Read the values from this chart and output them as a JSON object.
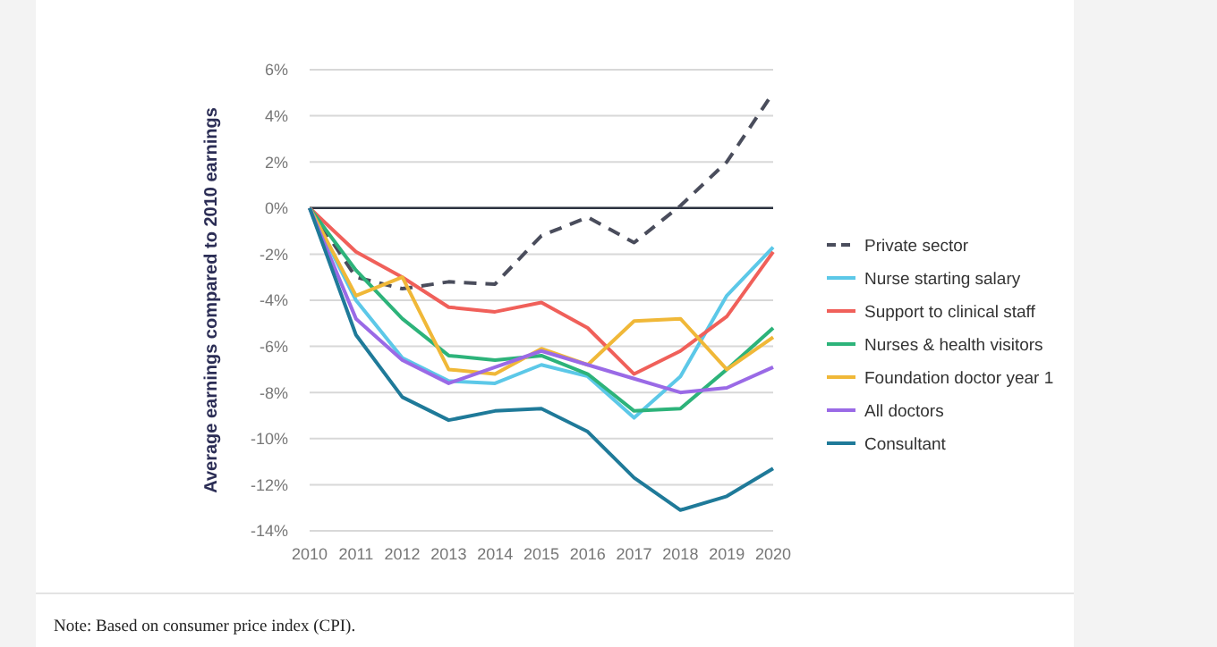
{
  "chart_data": {
    "type": "line",
    "ylabel": "Average earnings compared to 2010 earnings",
    "x": [
      2010,
      2011,
      2012,
      2013,
      2014,
      2015,
      2016,
      2017,
      2018,
      2019,
      2020
    ],
    "xlim": [
      2010,
      2020
    ],
    "xticks": [
      2010,
      2011,
      2012,
      2013,
      2014,
      2015,
      2016,
      2017,
      2018,
      2019,
      2020
    ],
    "ylim": [
      -14,
      6
    ],
    "yticks": [
      {
        "value": -14,
        "label": "-14%"
      },
      {
        "value": -12,
        "label": "-12%"
      },
      {
        "value": -10,
        "label": "-10%"
      },
      {
        "value": -8,
        "label": "-8%"
      },
      {
        "value": -6,
        "label": "-6%"
      },
      {
        "value": -4,
        "label": "-4%"
      },
      {
        "value": -2,
        "label": "-2%"
      },
      {
        "value": 0,
        "label": "0%"
      },
      {
        "value": 2,
        "label": "2%"
      },
      {
        "value": 4,
        "label": "4%"
      },
      {
        "value": 6,
        "label": "6%"
      }
    ],
    "grid": "y",
    "legend": "right",
    "marker": "none",
    "ref_lines": [
      {
        "axis": "y",
        "value": 0,
        "color": "#2b3240"
      }
    ],
    "annotations": [
      "Note:  Based on consumer price index (CPI)."
    ],
    "series": [
      {
        "name": "Private sector",
        "color": "#4a4d5c",
        "line_style": "dashed",
        "values": [
          0,
          -3.0,
          -3.5,
          -3.2,
          -3.3,
          -1.2,
          -0.4,
          -1.5,
          0.1,
          2.0,
          5.0
        ]
      },
      {
        "name": "Nurse starting salary",
        "color": "#5cc8e8",
        "values": [
          0,
          -4.0,
          -6.5,
          -7.5,
          -7.6,
          -6.8,
          -7.3,
          -9.1,
          -7.3,
          -3.8,
          -1.7
        ]
      },
      {
        "name": "Support to clinical staff",
        "color": "#f0605a",
        "values": [
          0,
          -1.9,
          -3.0,
          -4.3,
          -4.5,
          -4.1,
          -5.2,
          -7.2,
          -6.2,
          -4.7,
          -1.9
        ]
      },
      {
        "name": "Nurses & health visitors",
        "color": "#2db37a",
        "values": [
          0,
          -2.7,
          -4.8,
          -6.4,
          -6.6,
          -6.4,
          -7.2,
          -8.8,
          -8.7,
          -7.0,
          -5.2
        ]
      },
      {
        "name": "Foundation doctor year 1",
        "color": "#f0b838",
        "values": [
          0,
          -3.8,
          -3.0,
          -7.0,
          -7.2,
          -6.1,
          -6.8,
          -4.9,
          -4.8,
          -7.0,
          -5.6
        ]
      },
      {
        "name": "All doctors",
        "color": "#9a6ae6",
        "values": [
          0,
          -4.8,
          -6.6,
          -7.6,
          -6.9,
          -6.2,
          -6.8,
          -7.4,
          -8.0,
          -7.8,
          -6.9
        ]
      },
      {
        "name": "Consultant",
        "color": "#1f7a99",
        "values": [
          0,
          -5.5,
          -8.2,
          -9.2,
          -8.8,
          -8.7,
          -9.7,
          -11.7,
          -13.1,
          -12.5,
          -11.3
        ]
      }
    ]
  }
}
